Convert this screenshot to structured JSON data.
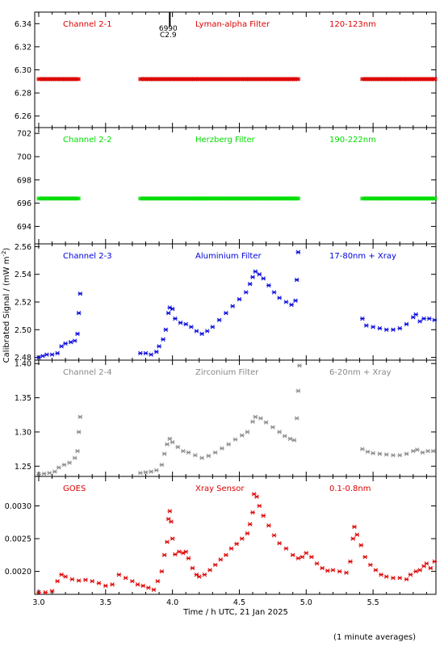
{
  "chart_data": [
    {
      "type": "scatter",
      "id": "ch21",
      "color": "#dd0000",
      "labels": [
        "Channel 2-1",
        "Lyman-alpha Filter",
        "120-123nm"
      ],
      "annotation": [
        "6990",
        "C2.9"
      ],
      "annotation_x": 3.98,
      "ylim": [
        6.25,
        6.35
      ],
      "yticks": [
        6.26,
        6.28,
        6.3,
        6.32,
        6.34
      ],
      "ytick_labels": [
        "6.26",
        "6.28",
        "6.30",
        "6.32",
        "6.34"
      ],
      "segments": [
        {
          "x0": 3.0,
          "x1": 3.3,
          "y": 6.292
        },
        {
          "x0": 3.76,
          "x1": 4.95,
          "y": 6.292
        },
        {
          "x0": 5.42,
          "x1": 5.97,
          "y": 6.292
        }
      ]
    },
    {
      "type": "scatter",
      "id": "ch22",
      "color": "#00dd00",
      "labels": [
        "Channel 2-2",
        "Herzberg Filter",
        "190-222nm"
      ],
      "ylim": [
        692.5,
        702.5
      ],
      "yticks": [
        694,
        696,
        698,
        700,
        702
      ],
      "ytick_labels": [
        "694",
        "696",
        "698",
        "700",
        "702"
      ],
      "segments": [
        {
          "x0": 3.0,
          "x1": 3.3,
          "y": 696.4
        },
        {
          "x0": 3.76,
          "x1": 4.95,
          "y": 696.4
        },
        {
          "x0": 5.42,
          "x1": 5.97,
          "y": 696.4
        }
      ]
    },
    {
      "type": "scatter",
      "id": "ch23",
      "color": "#0000dd",
      "labels": [
        "Channel 2-3",
        "Aluminium Filter",
        "17-80nm + Xray"
      ],
      "ylim": [
        2.478,
        2.562
      ],
      "yticks": [
        2.48,
        2.5,
        2.52,
        2.54,
        2.56
      ],
      "ytick_labels": [
        "2.48",
        "2.50",
        "2.52",
        "2.54",
        "2.56"
      ],
      "points": [
        [
          3.0,
          2.48
        ],
        [
          3.03,
          2.481
        ],
        [
          3.06,
          2.482
        ],
        [
          3.1,
          2.482
        ],
        [
          3.14,
          2.483
        ],
        [
          3.17,
          2.488
        ],
        [
          3.2,
          2.49
        ],
        [
          3.24,
          2.491
        ],
        [
          3.27,
          2.492
        ],
        [
          3.29,
          2.497
        ],
        [
          3.3,
          2.512
        ],
        [
          3.31,
          2.526
        ],
        [
          3.76,
          2.483
        ],
        [
          3.8,
          2.483
        ],
        [
          3.84,
          2.482
        ],
        [
          3.88,
          2.484
        ],
        [
          3.9,
          2.488
        ],
        [
          3.93,
          2.493
        ],
        [
          3.95,
          2.5
        ],
        [
          3.97,
          2.512
        ],
        [
          3.98,
          2.516
        ],
        [
          4.0,
          2.515
        ],
        [
          4.02,
          2.508
        ],
        [
          4.06,
          2.505
        ],
        [
          4.1,
          2.504
        ],
        [
          4.14,
          2.502
        ],
        [
          4.18,
          2.499
        ],
        [
          4.22,
          2.497
        ],
        [
          4.26,
          2.499
        ],
        [
          4.3,
          2.502
        ],
        [
          4.35,
          2.507
        ],
        [
          4.4,
          2.512
        ],
        [
          4.45,
          2.517
        ],
        [
          4.5,
          2.522
        ],
        [
          4.55,
          2.527
        ],
        [
          4.58,
          2.533
        ],
        [
          4.6,
          2.538
        ],
        [
          4.62,
          2.542
        ],
        [
          4.65,
          2.54
        ],
        [
          4.68,
          2.537
        ],
        [
          4.72,
          2.532
        ],
        [
          4.76,
          2.527
        ],
        [
          4.8,
          2.523
        ],
        [
          4.85,
          2.52
        ],
        [
          4.89,
          2.518
        ],
        [
          4.92,
          2.521
        ],
        [
          4.93,
          2.536
        ],
        [
          4.94,
          2.556
        ],
        [
          5.42,
          2.508
        ],
        [
          5.45,
          2.503
        ],
        [
          5.5,
          2.502
        ],
        [
          5.55,
          2.501
        ],
        [
          5.6,
          2.5
        ],
        [
          5.65,
          2.5
        ],
        [
          5.7,
          2.501
        ],
        [
          5.75,
          2.504
        ],
        [
          5.8,
          2.509
        ],
        [
          5.82,
          2.511
        ],
        [
          5.85,
          2.506
        ],
        [
          5.88,
          2.508
        ],
        [
          5.92,
          2.508
        ],
        [
          5.96,
          2.507
        ]
      ]
    },
    {
      "type": "scatter",
      "id": "ch24",
      "color": "#888888",
      "labels": [
        "Channel 2-4",
        "Zirconium Filter",
        "6-20nm + Xray"
      ],
      "ylim": [
        1.235,
        1.405
      ],
      "yticks": [
        1.25,
        1.3,
        1.35,
        1.4
      ],
      "ytick_labels": [
        "1.25",
        "1.30",
        "1.35",
        "1.40"
      ],
      "points": [
        [
          3.0,
          1.238
        ],
        [
          3.04,
          1.239
        ],
        [
          3.08,
          1.24
        ],
        [
          3.12,
          1.242
        ],
        [
          3.15,
          1.248
        ],
        [
          3.19,
          1.252
        ],
        [
          3.23,
          1.255
        ],
        [
          3.27,
          1.262
        ],
        [
          3.29,
          1.272
        ],
        [
          3.3,
          1.3
        ],
        [
          3.31,
          1.322
        ],
        [
          3.76,
          1.24
        ],
        [
          3.8,
          1.241
        ],
        [
          3.84,
          1.242
        ],
        [
          3.88,
          1.244
        ],
        [
          3.92,
          1.252
        ],
        [
          3.94,
          1.268
        ],
        [
          3.96,
          1.282
        ],
        [
          3.98,
          1.29
        ],
        [
          4.0,
          1.285
        ],
        [
          4.04,
          1.278
        ],
        [
          4.08,
          1.272
        ],
        [
          4.12,
          1.27
        ],
        [
          4.17,
          1.266
        ],
        [
          4.22,
          1.262
        ],
        [
          4.27,
          1.265
        ],
        [
          4.32,
          1.27
        ],
        [
          4.37,
          1.276
        ],
        [
          4.42,
          1.282
        ],
        [
          4.47,
          1.289
        ],
        [
          4.52,
          1.295
        ],
        [
          4.56,
          1.3
        ],
        [
          4.6,
          1.315
        ],
        [
          4.62,
          1.322
        ],
        [
          4.66,
          1.32
        ],
        [
          4.7,
          1.314
        ],
        [
          4.75,
          1.307
        ],
        [
          4.8,
          1.3
        ],
        [
          4.84,
          1.294
        ],
        [
          4.88,
          1.29
        ],
        [
          4.91,
          1.288
        ],
        [
          4.93,
          1.32
        ],
        [
          4.94,
          1.36
        ],
        [
          4.95,
          1.397
        ],
        [
          5.42,
          1.275
        ],
        [
          5.46,
          1.271
        ],
        [
          5.5,
          1.269
        ],
        [
          5.55,
          1.268
        ],
        [
          5.6,
          1.267
        ],
        [
          5.65,
          1.266
        ],
        [
          5.7,
          1.266
        ],
        [
          5.75,
          1.268
        ],
        [
          5.8,
          1.272
        ],
        [
          5.83,
          1.274
        ],
        [
          5.87,
          1.27
        ],
        [
          5.91,
          1.272
        ],
        [
          5.95,
          1.272
        ]
      ]
    },
    {
      "type": "scatter",
      "id": "goes",
      "color": "#dd0000",
      "labels": [
        "GOES",
        "Xray Sensor",
        "0.1-0.8nm"
      ],
      "ylim": [
        0.00165,
        0.00345
      ],
      "yticks": [
        0.002,
        0.0025,
        0.003
      ],
      "ytick_labels": [
        "0.0020",
        "0.0025",
        "0.0030"
      ],
      "points": [
        [
          3.0,
          0.00168
        ],
        [
          3.05,
          0.00168
        ],
        [
          3.1,
          0.0017
        ],
        [
          3.14,
          0.00185
        ],
        [
          3.17,
          0.00195
        ],
        [
          3.2,
          0.00192
        ],
        [
          3.25,
          0.00188
        ],
        [
          3.3,
          0.00186
        ],
        [
          3.35,
          0.00187
        ],
        [
          3.4,
          0.00185
        ],
        [
          3.45,
          0.00182
        ],
        [
          3.5,
          0.00178
        ],
        [
          3.55,
          0.0018
        ],
        [
          3.6,
          0.00195
        ],
        [
          3.65,
          0.0019
        ],
        [
          3.7,
          0.00185
        ],
        [
          3.74,
          0.0018
        ],
        [
          3.78,
          0.00178
        ],
        [
          3.82,
          0.00175
        ],
        [
          3.86,
          0.00172
        ],
        [
          3.89,
          0.00185
        ],
        [
          3.92,
          0.002
        ],
        [
          3.94,
          0.00225
        ],
        [
          3.96,
          0.00245
        ],
        [
          3.97,
          0.0028
        ],
        [
          3.98,
          0.00292
        ],
        [
          3.99,
          0.00276
        ],
        [
          4.0,
          0.0025
        ],
        [
          4.02,
          0.00226
        ],
        [
          4.05,
          0.0023
        ],
        [
          4.08,
          0.00228
        ],
        [
          4.1,
          0.0023
        ],
        [
          4.12,
          0.0022
        ],
        [
          4.15,
          0.00205
        ],
        [
          4.18,
          0.00195
        ],
        [
          4.2,
          0.00192
        ],
        [
          4.24,
          0.00195
        ],
        [
          4.28,
          0.00202
        ],
        [
          4.32,
          0.0021
        ],
        [
          4.36,
          0.00218
        ],
        [
          4.4,
          0.00225
        ],
        [
          4.44,
          0.00235
        ],
        [
          4.48,
          0.00242
        ],
        [
          4.52,
          0.0025
        ],
        [
          4.56,
          0.00258
        ],
        [
          4.58,
          0.00272
        ],
        [
          4.6,
          0.0029
        ],
        [
          4.61,
          0.00318
        ],
        [
          4.63,
          0.00314
        ],
        [
          4.65,
          0.003
        ],
        [
          4.68,
          0.00285
        ],
        [
          4.72,
          0.0027
        ],
        [
          4.76,
          0.00255
        ],
        [
          4.8,
          0.00243
        ],
        [
          4.85,
          0.00235
        ],
        [
          4.9,
          0.00225
        ],
        [
          4.94,
          0.0022
        ],
        [
          4.97,
          0.00222
        ],
        [
          5.0,
          0.00228
        ],
        [
          5.04,
          0.00222
        ],
        [
          5.08,
          0.00212
        ],
        [
          5.12,
          0.00205
        ],
        [
          5.16,
          0.00201
        ],
        [
          5.2,
          0.00202
        ],
        [
          5.25,
          0.002
        ],
        [
          5.3,
          0.00198
        ],
        [
          5.33,
          0.00215
        ],
        [
          5.35,
          0.0025
        ],
        [
          5.36,
          0.00268
        ],
        [
          5.38,
          0.00256
        ],
        [
          5.41,
          0.0024
        ],
        [
          5.44,
          0.00222
        ],
        [
          5.48,
          0.0021
        ],
        [
          5.52,
          0.00202
        ],
        [
          5.56,
          0.00195
        ],
        [
          5.6,
          0.00192
        ],
        [
          5.65,
          0.0019
        ],
        [
          5.7,
          0.0019
        ],
        [
          5.75,
          0.00188
        ],
        [
          5.78,
          0.00195
        ],
        [
          5.82,
          0.002
        ],
        [
          5.85,
          0.00202
        ],
        [
          5.88,
          0.00208
        ],
        [
          5.9,
          0.00212
        ],
        [
          5.93,
          0.00205
        ],
        [
          5.96,
          0.00215
        ]
      ]
    }
  ],
  "x_axis": {
    "range": [
      2.97,
      5.97
    ],
    "ticks": [
      3.0,
      3.5,
      4.0,
      4.5,
      5.0,
      5.5
    ],
    "tick_labels": [
      "3.0",
      "3.5",
      "4.0",
      "4.5",
      "5.0",
      "5.5"
    ],
    "minor_step": 0.1
  },
  "xlabel": "Time / h UTC, 21 Jan 2025",
  "ylabel_pre": "Calibrated Signal / (mW m",
  "ylabel_sup": "-2",
  "ylabel_post": ")",
  "footnote": "(1 minute averages)"
}
